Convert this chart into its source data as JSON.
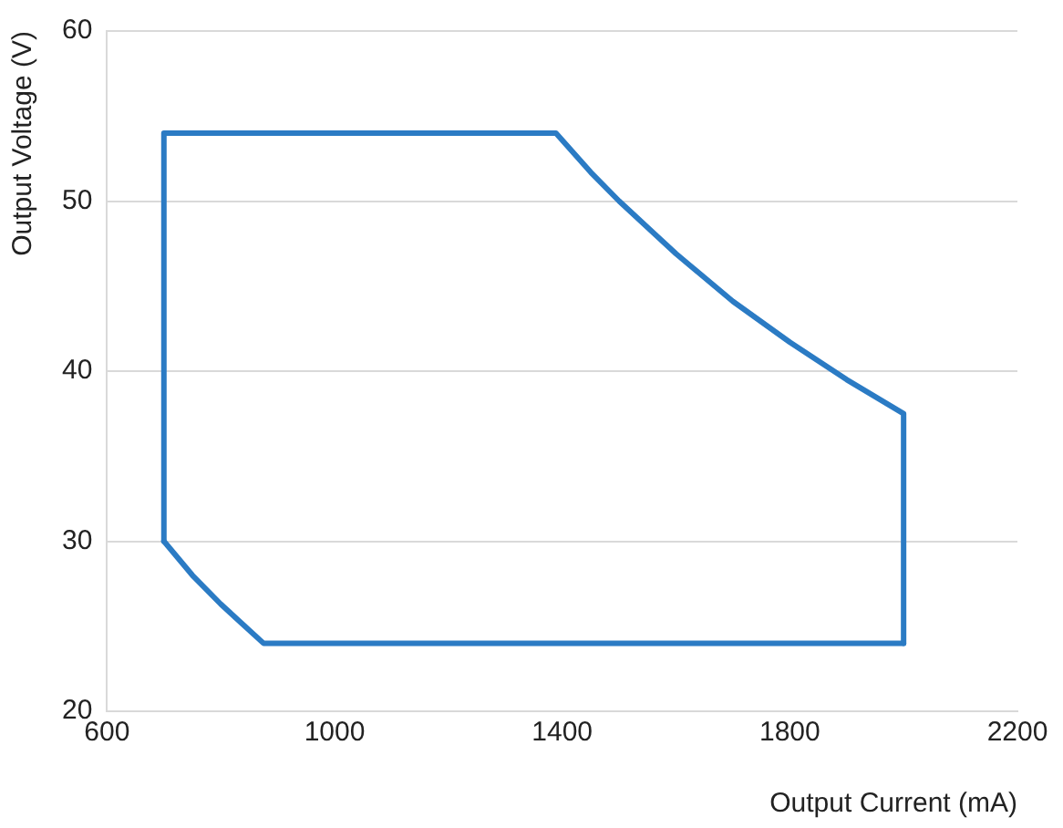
{
  "chart_data": {
    "type": "line",
    "xlabel": "Output Current (mA)",
    "ylabel": "Output Voltage (V)",
    "series": [
      {
        "color": "#2b7bc4",
        "x": [
          700,
          700,
          1389,
          1450,
          1500,
          1600,
          1700,
          1800,
          1900,
          2000,
          2000
        ],
        "values": [
          30,
          54,
          54,
          51.7,
          50,
          46.9,
          44.1,
          41.7,
          39.5,
          37.5,
          24
        ]
      },
      {
        "color": "#2b7bc4",
        "x": [
          700,
          750,
          800,
          875,
          2000
        ],
        "values": [
          30,
          28,
          26.3,
          24,
          24
        ]
      }
    ],
    "xlim": [
      600,
      2200
    ],
    "xticks": [
      600,
      1000,
      1400,
      1800,
      2200
    ],
    "ylim": [
      20,
      60
    ],
    "yticks": [
      20,
      30,
      40,
      50,
      60
    ],
    "grid": "y",
    "legend": false,
    "marker": "none",
    "line_style": "solid"
  }
}
